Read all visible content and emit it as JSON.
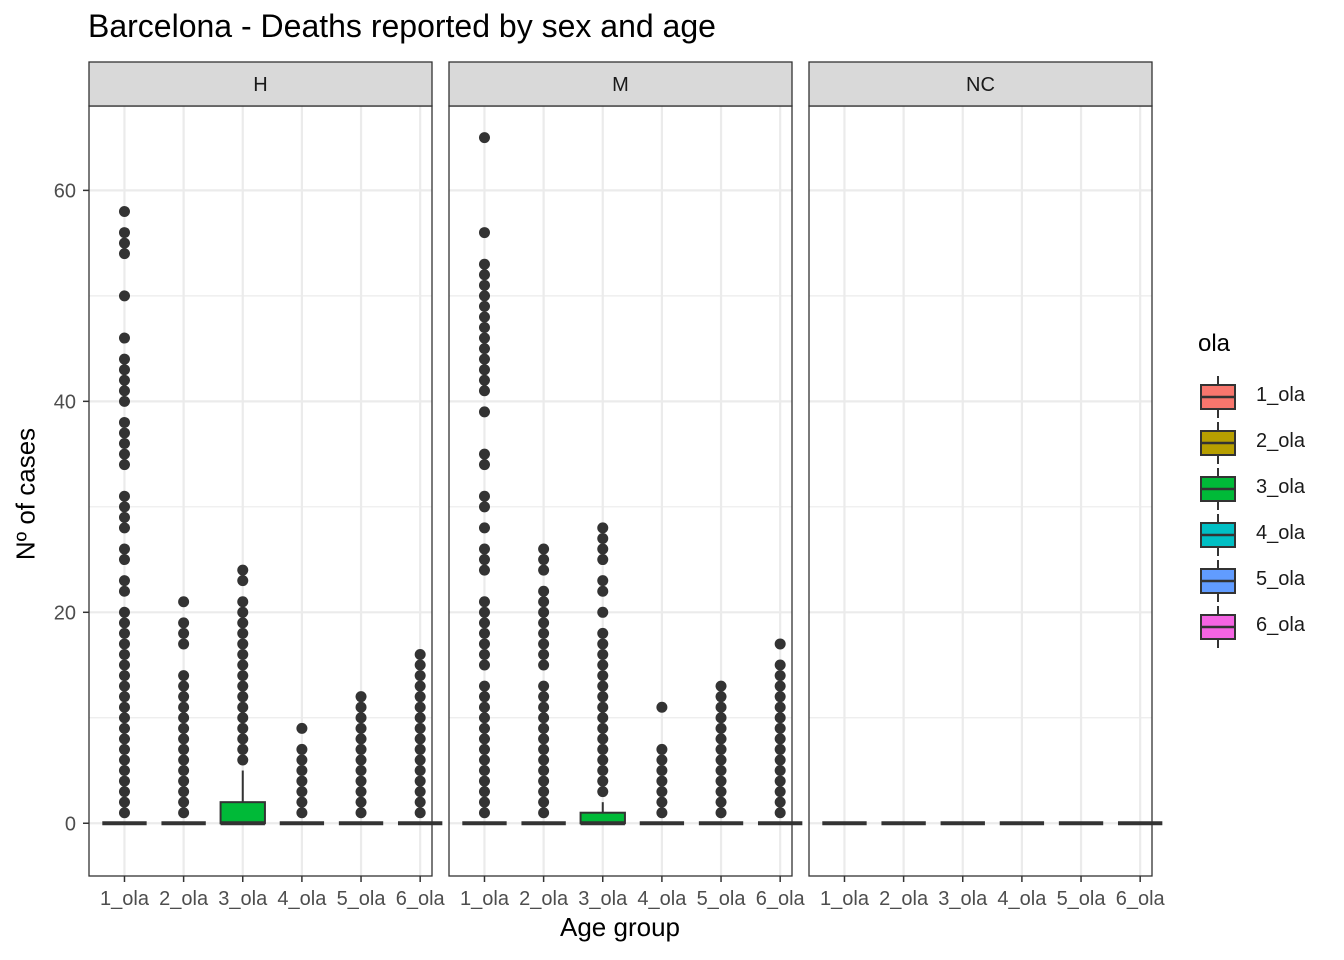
{
  "chart_data": {
    "type": "boxplot",
    "title": "Barcelona - Deaths reported by sex and age",
    "xlabel": "Age group",
    "ylabel": "Nº of cases",
    "ylim": [
      -5,
      68
    ],
    "yticks": [
      0,
      20,
      40,
      60
    ],
    "categories": [
      "1_ola",
      "2_ola",
      "3_ola",
      "4_ola",
      "5_ola",
      "6_ola"
    ],
    "grid": true,
    "legend": {
      "title": "ola",
      "position": "right",
      "entries": [
        {
          "label": "1_ola",
          "color": "#F8766D"
        },
        {
          "label": "2_ola",
          "color": "#B79F00"
        },
        {
          "label": "3_ola",
          "color": "#00BA38"
        },
        {
          "label": "4_ola",
          "color": "#00BFC4"
        },
        {
          "label": "5_ola",
          "color": "#619CFF"
        },
        {
          "label": "6_ola",
          "color": "#F564E3"
        }
      ]
    },
    "facets": [
      {
        "label": "H",
        "groups": [
          {
            "category": "1_ola",
            "q1": 0,
            "median": 0,
            "q3": 0,
            "whisker_low": 0,
            "whisker_high": 0,
            "outliers": [
              1,
              2,
              3,
              4,
              5,
              6,
              7,
              8,
              9,
              10,
              11,
              12,
              13,
              14,
              15,
              16,
              17,
              18,
              19,
              20,
              22,
              23,
              25,
              26,
              28,
              29,
              30,
              31,
              34,
              35,
              36,
              37,
              38,
              40,
              41,
              42,
              43,
              44,
              46,
              50,
              54,
              55,
              56,
              58
            ]
          },
          {
            "category": "2_ola",
            "q1": 0,
            "median": 0,
            "q3": 0,
            "whisker_low": 0,
            "whisker_high": 0,
            "outliers": [
              1,
              2,
              3,
              4,
              5,
              6,
              7,
              8,
              9,
              10,
              11,
              12,
              13,
              14,
              17,
              18,
              19,
              21
            ]
          },
          {
            "category": "3_ola",
            "q1": 0,
            "median": 0,
            "q3": 2,
            "whisker_low": 0,
            "whisker_high": 5,
            "outliers": [
              6,
              7,
              8,
              9,
              10,
              11,
              12,
              13,
              14,
              15,
              16,
              17,
              18,
              19,
              20,
              21,
              23,
              24
            ]
          },
          {
            "category": "4_ola",
            "q1": 0,
            "median": 0,
            "q3": 0,
            "whisker_low": 0,
            "whisker_high": 0,
            "outliers": [
              1,
              2,
              3,
              4,
              5,
              6,
              7,
              9
            ]
          },
          {
            "category": "5_ola",
            "q1": 0,
            "median": 0,
            "q3": 0,
            "whisker_low": 0,
            "whisker_high": 0,
            "outliers": [
              1,
              2,
              3,
              4,
              5,
              6,
              7,
              8,
              9,
              10,
              11,
              12
            ]
          },
          {
            "category": "6_ola",
            "q1": 0,
            "median": 0,
            "q3": 0,
            "whisker_low": 0,
            "whisker_high": 0,
            "outliers": [
              1,
              2,
              3,
              4,
              5,
              6,
              7,
              8,
              9,
              10,
              11,
              12,
              13,
              14,
              15,
              16
            ]
          }
        ]
      },
      {
        "label": "M",
        "groups": [
          {
            "category": "1_ola",
            "q1": 0,
            "median": 0,
            "q3": 0,
            "whisker_low": 0,
            "whisker_high": 0,
            "outliers": [
              1,
              2,
              3,
              4,
              5,
              6,
              7,
              8,
              9,
              10,
              11,
              12,
              13,
              15,
              16,
              17,
              18,
              19,
              20,
              21,
              24,
              25,
              26,
              28,
              30,
              31,
              34,
              35,
              39,
              41,
              42,
              43,
              44,
              45,
              46,
              47,
              48,
              49,
              50,
              51,
              52,
              53,
              56,
              65
            ]
          },
          {
            "category": "2_ola",
            "q1": 0,
            "median": 0,
            "q3": 0,
            "whisker_low": 0,
            "whisker_high": 0,
            "outliers": [
              1,
              2,
              3,
              4,
              5,
              6,
              7,
              8,
              9,
              10,
              11,
              12,
              13,
              15,
              16,
              17,
              18,
              19,
              20,
              21,
              22,
              24,
              25,
              26
            ]
          },
          {
            "category": "3_ola",
            "q1": 0,
            "median": 0,
            "q3": 1,
            "whisker_low": 0,
            "whisker_high": 2,
            "outliers": [
              3,
              4,
              5,
              6,
              7,
              8,
              9,
              10,
              11,
              12,
              13,
              14,
              15,
              16,
              17,
              18,
              20,
              22,
              23,
              25,
              26,
              27,
              28
            ]
          },
          {
            "category": "4_ola",
            "q1": 0,
            "median": 0,
            "q3": 0,
            "whisker_low": 0,
            "whisker_high": 0,
            "outliers": [
              1,
              2,
              3,
              4,
              5,
              6,
              7,
              11
            ]
          },
          {
            "category": "5_ola",
            "q1": 0,
            "median": 0,
            "q3": 0,
            "whisker_low": 0,
            "whisker_high": 0,
            "outliers": [
              1,
              2,
              3,
              4,
              5,
              6,
              7,
              8,
              9,
              10,
              11,
              12,
              13
            ]
          },
          {
            "category": "6_ola",
            "q1": 0,
            "median": 0,
            "q3": 0,
            "whisker_low": 0,
            "whisker_high": 0,
            "outliers": [
              1,
              2,
              3,
              4,
              5,
              6,
              7,
              8,
              9,
              10,
              11,
              12,
              13,
              14,
              15,
              17
            ]
          }
        ]
      },
      {
        "label": "NC",
        "groups": [
          {
            "category": "1_ola",
            "q1": 0,
            "median": 0,
            "q3": 0,
            "whisker_low": 0,
            "whisker_high": 0,
            "outliers": []
          },
          {
            "category": "2_ola",
            "q1": 0,
            "median": 0,
            "q3": 0,
            "whisker_low": 0,
            "whisker_high": 0,
            "outliers": []
          },
          {
            "category": "3_ola",
            "q1": 0,
            "median": 0,
            "q3": 0,
            "whisker_low": 0,
            "whisker_high": 0,
            "outliers": []
          },
          {
            "category": "4_ola",
            "q1": 0,
            "median": 0,
            "q3": 0,
            "whisker_low": 0,
            "whisker_high": 0,
            "outliers": []
          },
          {
            "category": "5_ola",
            "q1": 0,
            "median": 0,
            "q3": 0,
            "whisker_low": 0,
            "whisker_high": 0,
            "outliers": []
          },
          {
            "category": "6_ola",
            "q1": 0,
            "median": 0,
            "q3": 0,
            "whisker_low": 0,
            "whisker_high": 0,
            "outliers": []
          }
        ]
      }
    ]
  }
}
